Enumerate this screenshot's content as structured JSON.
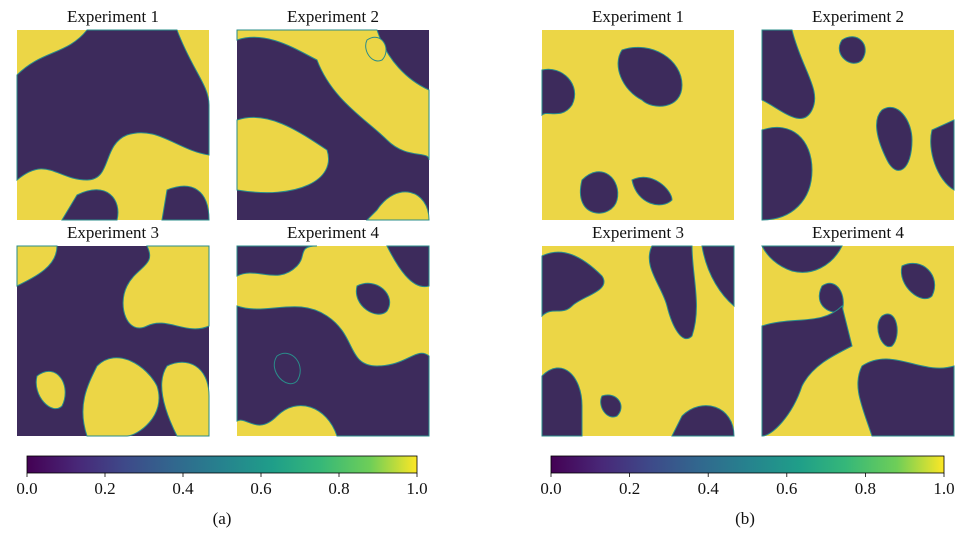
{
  "chart_data": [
    {
      "type": "heatmap-grid",
      "panels": [
        {
          "title": "Experiment 1"
        },
        {
          "title": "Experiment 2"
        },
        {
          "title": "Experiment 3"
        },
        {
          "title": "Experiment 4"
        }
      ],
      "colorbar": {
        "lim": [
          0,
          1
        ],
        "ticks": [
          {
            "value": 0,
            "label": "0.0"
          },
          {
            "value": 0.2,
            "label": "0.2"
          },
          {
            "value": 0.4,
            "label": "0.4"
          },
          {
            "value": 0.6,
            "label": "0.6"
          },
          {
            "value": 0.8,
            "label": "0.8"
          },
          {
            "value": 1,
            "label": "1.0"
          }
        ]
      },
      "caption": "(a)"
    },
    {
      "type": "heatmap-grid",
      "panels": [
        {
          "title": "Experiment 1"
        },
        {
          "title": "Experiment 2"
        },
        {
          "title": "Experiment 3"
        },
        {
          "title": "Experiment 4"
        }
      ],
      "colorbar": {
        "lim": [
          0,
          1
        ],
        "ticks": [
          {
            "value": 0,
            "label": "0.0"
          },
          {
            "value": 0.2,
            "label": "0.2"
          },
          {
            "value": 0.4,
            "label": "0.4"
          },
          {
            "value": 0.6,
            "label": "0.6"
          },
          {
            "value": 0.8,
            "label": "0.8"
          },
          {
            "value": 1,
            "label": "1.0"
          }
        ]
      },
      "caption": "(b)"
    }
  ]
}
